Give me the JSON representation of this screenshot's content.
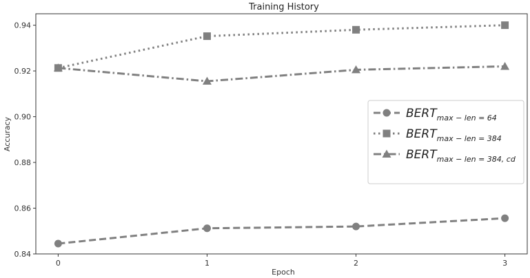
{
  "chart_data": {
    "type": "line",
    "title": "Training History",
    "xlabel": "Epoch",
    "ylabel": "Accuracy",
    "x": [
      0,
      1,
      2,
      3
    ],
    "xticks": [
      "0",
      "1",
      "2",
      "3"
    ],
    "yticks": [
      "0.84",
      "0.86",
      "0.88",
      "0.90",
      "0.92",
      "0.94"
    ],
    "ylim": [
      0.84,
      0.945
    ],
    "xlim": [
      -0.15,
      3.15
    ],
    "grid": false,
    "legend_position": "center-right",
    "series": [
      {
        "name": "BERT_{max-len=64}",
        "name_main": "BERT",
        "name_sub": "max − len = 64",
        "values": [
          0.8445,
          0.8512,
          0.852,
          0.8556
        ],
        "line_style": "dashed",
        "marker": "circle",
        "color": "#808080"
      },
      {
        "name": "BERT_{max-len=384}",
        "name_main": "BERT",
        "name_sub": "max − len = 384",
        "values": [
          0.9213,
          0.9352,
          0.938,
          0.94
        ],
        "line_style": "dotted",
        "marker": "square",
        "color": "#808080"
      },
      {
        "name": "BERT_{max-len=384,cd}",
        "name_main": "BERT",
        "name_sub": "max − len = 384, cd",
        "values": [
          0.9213,
          0.9155,
          0.9205,
          0.922
        ],
        "line_style": "dashdot",
        "marker": "triangle",
        "color": "#808080"
      }
    ]
  }
}
